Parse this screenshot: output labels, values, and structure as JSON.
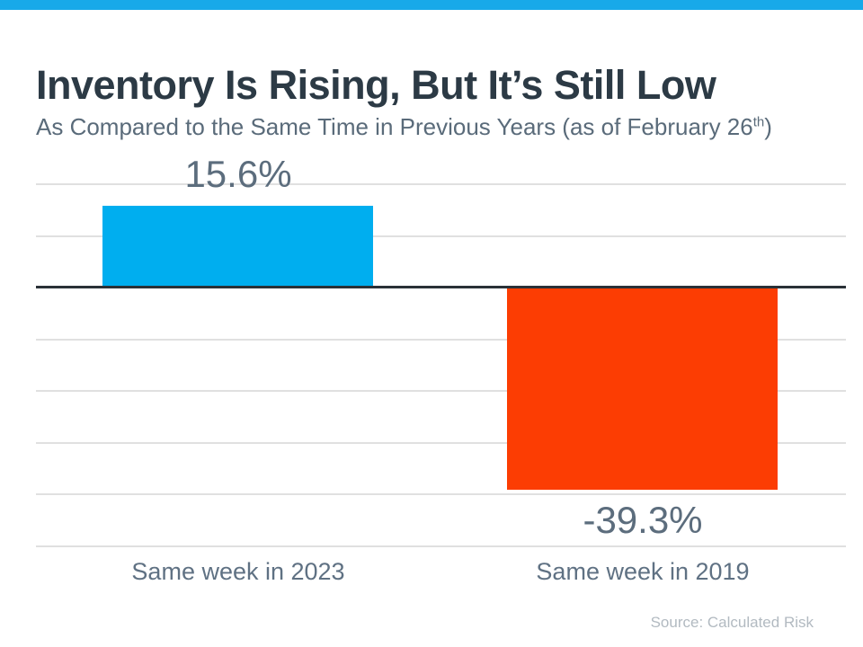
{
  "page": {
    "title": "Inventory Is Rising, But It’s Still Low",
    "subtitle_prefix": "As Compared to the Same Time in Previous Years (as of February 26",
    "subtitle_superscript": "th",
    "subtitle_suffix": ")",
    "source": "Source: Calculated Risk"
  },
  "colors": {
    "top_strip": "#18A9E9",
    "bar_positive": "#00AEEF",
    "bar_negative": "#FC3D03",
    "zero_line": "#2A3137",
    "gridline": "#E0E0E0",
    "title_text": "#2C3A45",
    "subtitle_text": "#5A6B7A",
    "value_label_text": "#5C6D7D",
    "category_text": "#5F7183",
    "source_text": "#B2BAC1"
  },
  "chart_data": {
    "type": "bar",
    "title": "Inventory Is Rising, But It’s Still Low",
    "subtitle": "As Compared to the Same Time in Previous Years (as of February 26th)",
    "categories": [
      "Same week in 2023",
      "Same week in 2019"
    ],
    "values": [
      15.6,
      -39.3
    ],
    "value_labels": [
      "15.6%",
      "-39.3%"
    ],
    "bar_colors": [
      "#00AEEF",
      "#FC3D03"
    ],
    "xlabel": "",
    "ylabel": "",
    "ylim": [
      -50,
      20
    ],
    "gridline_interval": 10,
    "grid": true,
    "legend": false,
    "zero_baseline": true,
    "source": "Source: Calculated Risk"
  }
}
